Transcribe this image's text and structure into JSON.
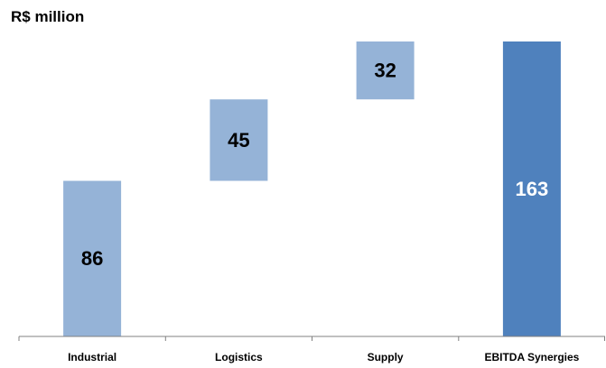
{
  "chart_data": {
    "type": "bar",
    "subtype": "waterfall",
    "unit_label": "R$ million",
    "title": "",
    "xlabel": "",
    "ylabel": "",
    "categories": [
      "Industrial",
      "Logistics",
      "Supply",
      "EBITDA Synergies"
    ],
    "values": [
      86,
      45,
      32,
      163
    ],
    "bar_kinds": [
      "increment",
      "increment",
      "increment",
      "total"
    ],
    "ylim": [
      0,
      163
    ],
    "grid": false,
    "legend": "none",
    "colors": {
      "increment": "#95b3d7",
      "total": "#4f81bd",
      "increment_label": "#000000",
      "total_label": "#ffffff",
      "axis": "#808080"
    }
  }
}
